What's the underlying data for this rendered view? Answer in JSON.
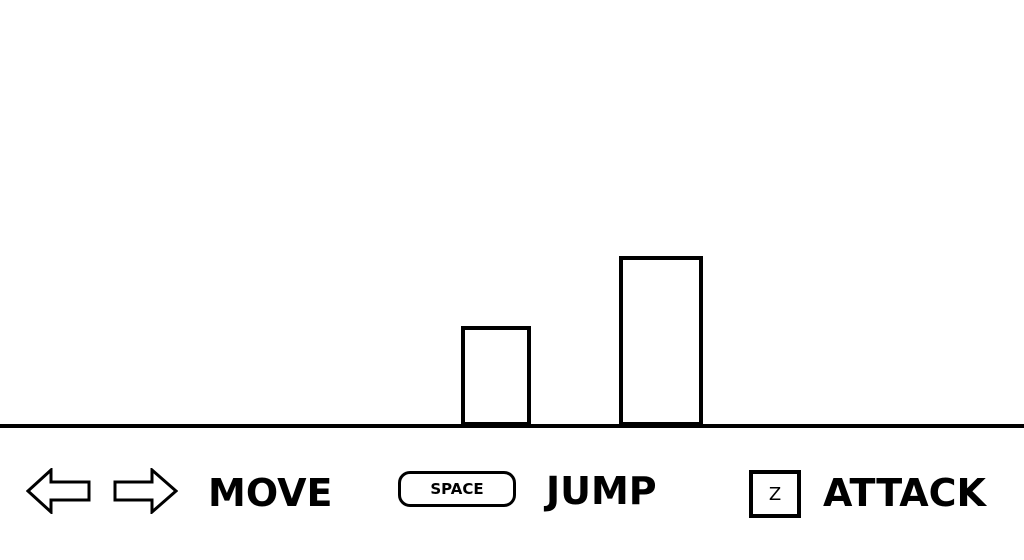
{
  "scene": {
    "background_color": "#ffffff",
    "ink_color": "#000000",
    "obstacles": [
      {
        "name": "short-block"
      },
      {
        "name": "tall-block"
      }
    ]
  },
  "controls": {
    "move": {
      "keys": [
        "arrow-left-icon",
        "arrow-right-icon"
      ],
      "label": "MOVE"
    },
    "jump": {
      "key_label": "SPACE",
      "label": "JUMP"
    },
    "attack": {
      "key_label": "Z",
      "label": "ATTACK"
    }
  }
}
